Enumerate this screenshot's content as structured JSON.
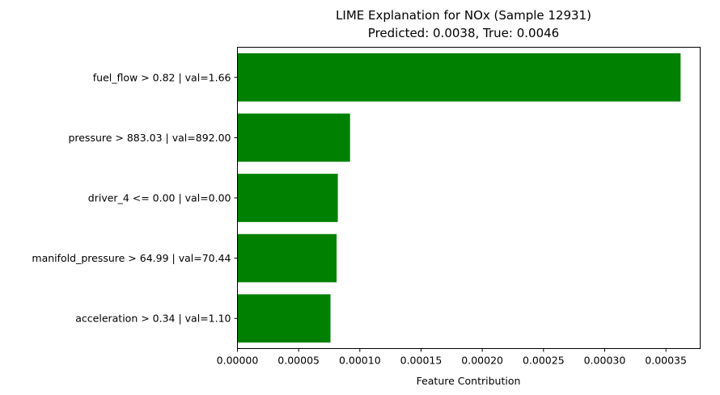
{
  "chart_data": {
    "type": "bar",
    "orientation": "horizontal",
    "title": "LIME Explanation for NOx (Sample 12931)",
    "subtitle": "Predicted: 0.0038, True: 0.0046",
    "xlabel": "Feature Contribution",
    "ylabel": "",
    "categories": [
      "fuel_flow > 0.82 | val=1.66",
      "pressure > 883.03 | val=892.00",
      "driver_4 <= 0.00 | val=0.00",
      "manifold_pressure > 64.99 | val=70.44",
      "acceleration > 0.34 | val=1.10"
    ],
    "values": [
      0.000362,
      9.2e-05,
      8.2e-05,
      8.1e-05,
      7.6e-05
    ],
    "xlim": [
      0,
      0.000378
    ],
    "xticks": [
      0,
      5e-05,
      0.0001,
      0.00015,
      0.0002,
      0.00025,
      0.0003,
      0.00035
    ],
    "xtick_labels": [
      "0.00000",
      "0.00005",
      "0.00010",
      "0.00015",
      "0.00020",
      "0.00025",
      "0.00030",
      "0.00035"
    ],
    "bar_color": "#008000",
    "grid": false,
    "legend": "none"
  }
}
